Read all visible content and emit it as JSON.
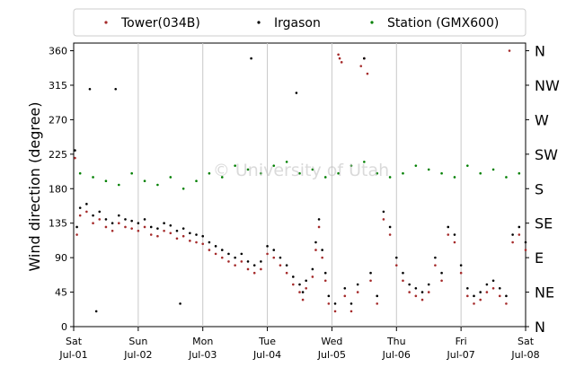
{
  "chart_data": {
    "type": "scatter",
    "title": "",
    "ylabel": "Wind direction (degree)",
    "xlabel": "",
    "ylim": [
      0,
      370
    ],
    "yticks": [
      0,
      45,
      90,
      135,
      180,
      225,
      270,
      315,
      360
    ],
    "right_axis_labels": [
      "N",
      "NE",
      "E",
      "SE",
      "S",
      "SW",
      "W",
      "NW",
      "N"
    ],
    "x_range": [
      "2017-07-01",
      "2017-07-08"
    ],
    "x_ticks": [
      {
        "day": "Sat",
        "date": "Jul-01"
      },
      {
        "day": "Sun",
        "date": "Jul-02"
      },
      {
        "day": "Mon",
        "date": "Jul-03"
      },
      {
        "day": "Tue",
        "date": "Jul-04"
      },
      {
        "day": "Wed",
        "date": "Jul-05"
      },
      {
        "day": "Thu",
        "date": "Jul-06"
      },
      {
        "day": "Fri",
        "date": "Jul-07"
      },
      {
        "day": "Sat",
        "date": "Jul-08"
      }
    ],
    "grid": "vertical-major",
    "legend_position": "top",
    "watermark": "© University of Utah",
    "series": [
      {
        "name": "Tower(034B)",
        "color": "#a52a2a",
        "points": [
          [
            0.02,
            220
          ],
          [
            0.05,
            120
          ],
          [
            0.1,
            145
          ],
          [
            0.2,
            150
          ],
          [
            0.3,
            135
          ],
          [
            0.4,
            140
          ],
          [
            0.5,
            130
          ],
          [
            0.6,
            125
          ],
          [
            0.7,
            135
          ],
          [
            0.8,
            130
          ],
          [
            0.9,
            128
          ],
          [
            1.0,
            125
          ],
          [
            1.1,
            130
          ],
          [
            1.2,
            120
          ],
          [
            1.3,
            118
          ],
          [
            1.4,
            125
          ],
          [
            1.5,
            122
          ],
          [
            1.6,
            115
          ],
          [
            1.7,
            118
          ],
          [
            1.8,
            112
          ],
          [
            1.9,
            110
          ],
          [
            2.0,
            108
          ],
          [
            2.1,
            100
          ],
          [
            2.2,
            95
          ],
          [
            2.3,
            90
          ],
          [
            2.4,
            85
          ],
          [
            2.5,
            80
          ],
          [
            2.6,
            85
          ],
          [
            2.7,
            75
          ],
          [
            2.8,
            70
          ],
          [
            2.9,
            75
          ],
          [
            3.0,
            95
          ],
          [
            3.1,
            90
          ],
          [
            3.2,
            80
          ],
          [
            3.3,
            70
          ],
          [
            3.4,
            55
          ],
          [
            3.5,
            45
          ],
          [
            3.55,
            35
          ],
          [
            3.6,
            50
          ],
          [
            3.7,
            65
          ],
          [
            3.75,
            100
          ],
          [
            3.8,
            130
          ],
          [
            3.85,
            90
          ],
          [
            3.9,
            60
          ],
          [
            3.95,
            30
          ],
          [
            4.05,
            20
          ],
          [
            4.1,
            355
          ],
          [
            4.12,
            350
          ],
          [
            4.15,
            345
          ],
          [
            4.2,
            40
          ],
          [
            4.3,
            20
          ],
          [
            4.4,
            45
          ],
          [
            4.45,
            340
          ],
          [
            4.5,
            350
          ],
          [
            4.55,
            330
          ],
          [
            4.6,
            60
          ],
          [
            4.7,
            30
          ],
          [
            4.8,
            140
          ],
          [
            4.9,
            120
          ],
          [
            5.0,
            80
          ],
          [
            5.1,
            60
          ],
          [
            5.2,
            45
          ],
          [
            5.3,
            40
          ],
          [
            5.4,
            35
          ],
          [
            5.5,
            45
          ],
          [
            5.6,
            80
          ],
          [
            5.7,
            60
          ],
          [
            5.8,
            120
          ],
          [
            5.9,
            110
          ],
          [
            6.0,
            70
          ],
          [
            6.1,
            40
          ],
          [
            6.2,
            30
          ],
          [
            6.3,
            35
          ],
          [
            6.4,
            45
          ],
          [
            6.5,
            50
          ],
          [
            6.6,
            40
          ],
          [
            6.7,
            30
          ],
          [
            6.75,
            360
          ],
          [
            6.8,
            110
          ],
          [
            6.9,
            120
          ],
          [
            7.0,
            100
          ]
        ]
      },
      {
        "name": "Irgason",
        "color": "#000000",
        "points": [
          [
            0.02,
            230
          ],
          [
            0.05,
            130
          ],
          [
            0.1,
            155
          ],
          [
            0.2,
            160
          ],
          [
            0.25,
            310
          ],
          [
            0.3,
            145
          ],
          [
            0.35,
            20
          ],
          [
            0.4,
            150
          ],
          [
            0.5,
            140
          ],
          [
            0.6,
            135
          ],
          [
            0.65,
            310
          ],
          [
            0.7,
            145
          ],
          [
            0.8,
            140
          ],
          [
            0.9,
            138
          ],
          [
            1.0,
            135
          ],
          [
            1.1,
            140
          ],
          [
            1.2,
            130
          ],
          [
            1.3,
            128
          ],
          [
            1.4,
            135
          ],
          [
            1.5,
            132
          ],
          [
            1.6,
            125
          ],
          [
            1.7,
            128
          ],
          [
            1.8,
            122
          ],
          [
            1.9,
            120
          ],
          [
            1.65,
            30
          ],
          [
            2.0,
            118
          ],
          [
            2.1,
            110
          ],
          [
            2.2,
            105
          ],
          [
            2.3,
            100
          ],
          [
            2.4,
            95
          ],
          [
            2.5,
            90
          ],
          [
            2.6,
            95
          ],
          [
            2.7,
            85
          ],
          [
            2.8,
            80
          ],
          [
            2.9,
            85
          ],
          [
            2.75,
            350
          ],
          [
            3.0,
            105
          ],
          [
            3.1,
            100
          ],
          [
            3.2,
            90
          ],
          [
            3.3,
            80
          ],
          [
            3.4,
            65
          ],
          [
            3.45,
            305
          ],
          [
            3.5,
            55
          ],
          [
            3.55,
            45
          ],
          [
            3.6,
            60
          ],
          [
            3.7,
            75
          ],
          [
            3.75,
            110
          ],
          [
            3.8,
            140
          ],
          [
            3.85,
            100
          ],
          [
            3.9,
            70
          ],
          [
            3.95,
            40
          ],
          [
            4.05,
            30
          ],
          [
            4.2,
            50
          ],
          [
            4.3,
            30
          ],
          [
            4.4,
            55
          ],
          [
            4.5,
            350
          ],
          [
            4.6,
            70
          ],
          [
            4.7,
            40
          ],
          [
            4.8,
            150
          ],
          [
            4.9,
            130
          ],
          [
            5.0,
            90
          ],
          [
            5.1,
            70
          ],
          [
            5.2,
            55
          ],
          [
            5.3,
            50
          ],
          [
            5.4,
            45
          ],
          [
            5.5,
            55
          ],
          [
            5.6,
            90
          ],
          [
            5.7,
            70
          ],
          [
            5.8,
            130
          ],
          [
            5.9,
            120
          ],
          [
            6.0,
            80
          ],
          [
            6.1,
            50
          ],
          [
            6.2,
            40
          ],
          [
            6.3,
            45
          ],
          [
            6.4,
            55
          ],
          [
            6.5,
            60
          ],
          [
            6.6,
            50
          ],
          [
            6.7,
            40
          ],
          [
            6.8,
            120
          ],
          [
            6.9,
            130
          ],
          [
            7.0,
            110
          ]
        ]
      },
      {
        "name": "Station (GMX600)",
        "color": "#008000",
        "points": [
          [
            0.1,
            200
          ],
          [
            0.3,
            195
          ],
          [
            0.5,
            190
          ],
          [
            0.7,
            185
          ],
          [
            0.9,
            200
          ],
          [
            1.1,
            190
          ],
          [
            1.3,
            185
          ],
          [
            1.5,
            195
          ],
          [
            1.7,
            180
          ],
          [
            1.9,
            190
          ],
          [
            2.1,
            200
          ],
          [
            2.3,
            195
          ],
          [
            2.5,
            210
          ],
          [
            2.7,
            205
          ],
          [
            2.9,
            200
          ],
          [
            3.1,
            210
          ],
          [
            3.3,
            215
          ],
          [
            3.5,
            200
          ],
          [
            3.7,
            205
          ],
          [
            3.9,
            195
          ],
          [
            4.1,
            200
          ],
          [
            4.3,
            210
          ],
          [
            4.5,
            215
          ],
          [
            4.7,
            200
          ],
          [
            4.9,
            195
          ],
          [
            5.1,
            200
          ],
          [
            5.3,
            210
          ],
          [
            5.5,
            205
          ],
          [
            5.7,
            200
          ],
          [
            5.9,
            195
          ],
          [
            6.1,
            210
          ],
          [
            6.3,
            200
          ],
          [
            6.5,
            205
          ],
          [
            6.7,
            195
          ],
          [
            6.9,
            200
          ]
        ]
      }
    ]
  }
}
